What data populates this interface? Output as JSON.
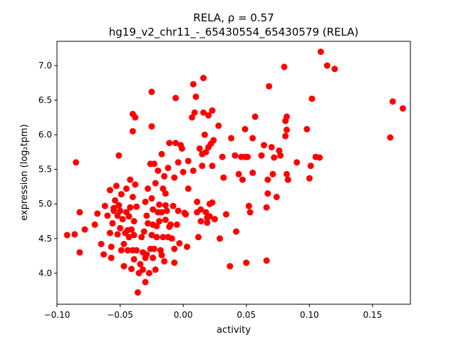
{
  "chart_data": {
    "type": "scatter",
    "title_line1": "RELA, ρ = 0.57",
    "title_line2": "hg19_v2_chr11_-_65430554_65430579 (RELA)",
    "xlabel": "activity",
    "ylabel": "expression (log₂tpm)",
    "xlim": [
      -0.1,
      0.18
    ],
    "ylim": [
      3.55,
      7.35
    ],
    "xticks": [
      -0.1,
      -0.05,
      0.0,
      0.05,
      0.1,
      0.15
    ],
    "xtick_labels": [
      "−0.10",
      "−0.05",
      "0.00",
      "0.05",
      "0.10",
      "0.15"
    ],
    "yticks": [
      4.0,
      4.5,
      5.0,
      5.5,
      6.0,
      6.5,
      7.0
    ],
    "ytick_labels": [
      "4.0",
      "4.5",
      "5.0",
      "5.5",
      "6.0",
      "6.5",
      "7.0"
    ],
    "marker_color": "#ff0000",
    "grid": false,
    "points": [
      [
        -0.092,
        4.55
      ],
      [
        -0.086,
        4.56
      ],
      [
        -0.085,
        5.6
      ],
      [
        -0.082,
        4.88
      ],
      [
        -0.082,
        4.3
      ],
      [
        -0.078,
        4.63
      ],
      [
        -0.07,
        4.7
      ],
      [
        -0.068,
        4.86
      ],
      [
        -0.065,
        4.42
      ],
      [
        -0.063,
        4.27
      ],
      [
        -0.062,
        4.97
      ],
      [
        -0.06,
        4.83
      ],
      [
        -0.058,
        5.2
      ],
      [
        -0.058,
        4.58
      ],
      [
        -0.057,
        4.38
      ],
      [
        -0.057,
        4.22
      ],
      [
        -0.056,
        4.72
      ],
      [
        -0.055,
        4.94
      ],
      [
        -0.055,
        4.9
      ],
      [
        -0.054,
        5.05
      ],
      [
        -0.053,
        5.26
      ],
      [
        -0.052,
        4.56
      ],
      [
        -0.052,
        4.83
      ],
      [
        -0.051,
        4.98
      ],
      [
        -0.051,
        5.7
      ],
      [
        -0.05,
        4.9
      ],
      [
        -0.05,
        4.65
      ],
      [
        -0.049,
        4.33
      ],
      [
        -0.049,
        5.14
      ],
      [
        -0.048,
        4.78
      ],
      [
        -0.047,
        4.1
      ],
      [
        -0.047,
        4.42
      ],
      [
        -0.046,
        4.58
      ],
      [
        -0.045,
        4.88
      ],
      [
        -0.045,
        5.22
      ],
      [
        -0.044,
        4.33
      ],
      [
        -0.044,
        4.62
      ],
      [
        -0.043,
        4.52
      ],
      [
        -0.043,
        4.82
      ],
      [
        -0.042,
        5.35
      ],
      [
        -0.042,
        4.95
      ],
      [
        -0.041,
        4.63
      ],
      [
        -0.041,
        4.06
      ],
      [
        -0.04,
        4.33
      ],
      [
        -0.04,
        5.1
      ],
      [
        -0.04,
        6.3
      ],
      [
        -0.04,
        6.05
      ],
      [
        -0.039,
        4.2
      ],
      [
        -0.039,
        4.55
      ],
      [
        -0.039,
        4.75
      ],
      [
        -0.038,
        5.28
      ],
      [
        -0.038,
        6.25
      ],
      [
        -0.037,
        4.33
      ],
      [
        -0.037,
        4.96
      ],
      [
        -0.036,
        3.72
      ],
      [
        -0.035,
        4.0
      ],
      [
        -0.034,
        4.13
      ],
      [
        -0.033,
        4.52
      ],
      [
        -0.032,
        4.3
      ],
      [
        -0.032,
        4.05
      ],
      [
        -0.031,
        4.6
      ],
      [
        -0.03,
        5.03
      ],
      [
        -0.03,
        4.22
      ],
      [
        -0.03,
        3.87
      ],
      [
        -0.029,
        4.27
      ],
      [
        -0.029,
        4.83
      ],
      [
        -0.028,
        5.22
      ],
      [
        -0.028,
        4.72
      ],
      [
        -0.027,
        4.0
      ],
      [
        -0.026,
        5.58
      ],
      [
        -0.026,
        4.35
      ],
      [
        -0.025,
        4.55
      ],
      [
        -0.025,
        5.08
      ],
      [
        -0.025,
        6.12
      ],
      [
        -0.025,
        6.62
      ],
      [
        -0.024,
        4.92
      ],
      [
        -0.024,
        4.7
      ],
      [
        -0.024,
        4.22
      ],
      [
        -0.023,
        5.58
      ],
      [
        -0.023,
        4.35
      ],
      [
        -0.022,
        5.3
      ],
      [
        -0.022,
        4.05
      ],
      [
        -0.021,
        4.68
      ],
      [
        -0.021,
        4.52
      ],
      [
        -0.02,
        4.88
      ],
      [
        -0.02,
        5.48
      ],
      [
        -0.019,
        4.99
      ],
      [
        -0.019,
        4.75
      ],
      [
        -0.018,
        4.33
      ],
      [
        -0.017,
        5.72
      ],
      [
        -0.017,
        4.88
      ],
      [
        -0.017,
        4.26
      ],
      [
        -0.016,
        4.52
      ],
      [
        -0.016,
        5.22
      ],
      [
        -0.015,
        5.4
      ],
      [
        -0.015,
        4.17
      ],
      [
        -0.014,
        4.77
      ],
      [
        -0.014,
        4.98
      ],
      [
        -0.014,
        5.15
      ],
      [
        -0.013,
        4.9
      ],
      [
        -0.012,
        5.52
      ],
      [
        -0.012,
        4.52
      ],
      [
        -0.011,
        5.88
      ],
      [
        -0.011,
        4.67
      ],
      [
        -0.01,
        4.7
      ],
      [
        -0.009,
        4.5
      ],
      [
        -0.008,
        4.97
      ],
      [
        -0.007,
        4.35
      ],
      [
        -0.007,
        4.15
      ],
      [
        -0.007,
        5.38
      ],
      [
        -0.006,
        6.53
      ],
      [
        -0.006,
        5.88
      ],
      [
        -0.005,
        4.7
      ],
      [
        -0.004,
        5.6
      ],
      [
        -0.004,
        4.9
      ],
      [
        -0.003,
        4.43
      ],
      [
        -0.002,
        5.85
      ],
      [
        -0.001,
        5.8
      ],
      [
        0.0,
        5.46
      ],
      [
        0.001,
        4.87
      ],
      [
        0.002,
        4.85
      ],
      [
        0.003,
        4.38
      ],
      [
        0.004,
        5.62
      ],
      [
        0.004,
        5.22
      ],
      [
        0.007,
        6.25
      ],
      [
        0.008,
        6.73
      ],
      [
        0.008,
        5.48
      ],
      [
        0.009,
        6.32
      ],
      [
        0.01,
        6.55
      ],
      [
        0.011,
        5.03
      ],
      [
        0.011,
        4.88
      ],
      [
        0.012,
        4.52
      ],
      [
        0.013,
        5.8
      ],
      [
        0.014,
        4.92
      ],
      [
        0.014,
        4.75
      ],
      [
        0.015,
        5.72
      ],
      [
        0.015,
        5.55
      ],
      [
        0.016,
        6.82
      ],
      [
        0.016,
        6.32
      ],
      [
        0.017,
        6.0
      ],
      [
        0.018,
        5.75
      ],
      [
        0.018,
        4.88
      ],
      [
        0.019,
        4.8
      ],
      [
        0.019,
        4.73
      ],
      [
        0.02,
        5.82
      ],
      [
        0.02,
        6.28
      ],
      [
        0.021,
        5.0
      ],
      [
        0.021,
        4.82
      ],
      [
        0.022,
        5.87
      ],
      [
        0.023,
        5.02
      ],
      [
        0.023,
        5.55
      ],
      [
        0.023,
        6.35
      ],
      [
        0.024,
        5.92
      ],
      [
        0.025,
        4.78
      ],
      [
        0.028,
        6.13
      ],
      [
        0.029,
        4.5
      ],
      [
        0.031,
        5.68
      ],
      [
        0.032,
        5.38
      ],
      [
        0.034,
        4.85
      ],
      [
        0.037,
        4.1
      ],
      [
        0.038,
        5.95
      ],
      [
        0.041,
        5.7
      ],
      [
        0.042,
        4.6
      ],
      [
        0.044,
        5.43
      ],
      [
        0.046,
        5.68
      ],
      [
        0.047,
        5.35
      ],
      [
        0.049,
        6.08
      ],
      [
        0.049,
        5.68
      ],
      [
        0.05,
        4.15
      ],
      [
        0.051,
        5.68
      ],
      [
        0.052,
        4.97
      ],
      [
        0.053,
        4.88
      ],
      [
        0.055,
        5.95
      ],
      [
        0.055,
        5.45
      ],
      [
        0.057,
        6.26
      ],
      [
        0.062,
        5.7
      ],
      [
        0.064,
        5.85
      ],
      [
        0.066,
        4.95
      ],
      [
        0.066,
        4.18
      ],
      [
        0.067,
        5.35
      ],
      [
        0.067,
        5.15
      ],
      [
        0.068,
        6.7
      ],
      [
        0.07,
        5.82
      ],
      [
        0.071,
        5.43
      ],
      [
        0.072,
        5.67
      ],
      [
        0.074,
        5.1
      ],
      [
        0.076,
        5.77
      ],
      [
        0.077,
        5.7
      ],
      [
        0.08,
        6.98
      ],
      [
        0.081,
        5.98
      ],
      [
        0.081,
        6.2
      ],
      [
        0.082,
        6.26
      ],
      [
        0.082,
        6.07
      ],
      [
        0.082,
        5.43
      ],
      [
        0.083,
        5.35
      ],
      [
        0.09,
        5.6
      ],
      [
        0.098,
        6.08
      ],
      [
        0.1,
        5.37
      ],
      [
        0.101,
        5.55
      ],
      [
        0.102,
        6.52
      ],
      [
        0.105,
        5.68
      ],
      [
        0.108,
        5.67
      ],
      [
        0.109,
        7.2
      ],
      [
        0.114,
        7.0
      ],
      [
        0.12,
        6.95
      ],
      [
        0.164,
        5.96
      ],
      [
        0.166,
        6.48
      ],
      [
        0.174,
        6.38
      ]
    ]
  }
}
